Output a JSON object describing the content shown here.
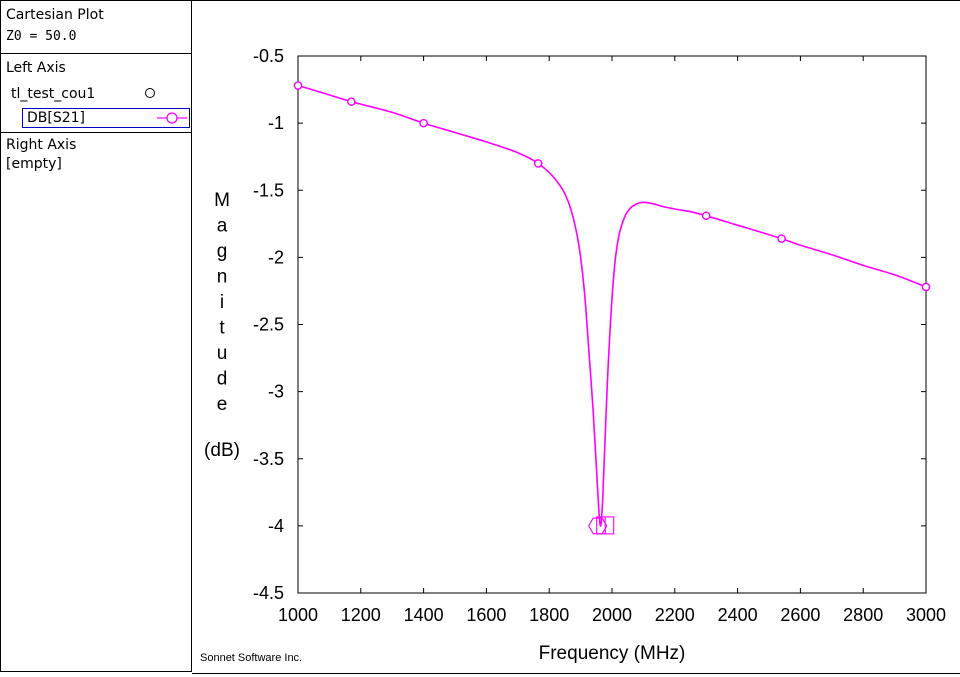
{
  "sidebar": {
    "plot_type": "Cartesian Plot",
    "z0": "Z0 = 50.0",
    "left_axis": {
      "label": "Left Axis",
      "file": "tl_test_cou1",
      "trace": "DB[S21]"
    },
    "right_axis": {
      "label": "Right Axis",
      "value": "[empty]"
    }
  },
  "credit": "Sonnet Software Inc.",
  "trace_color": "#ff00ff",
  "chart_data": {
    "type": "line",
    "xlabel": "Frequency (MHz)",
    "ylabel_letters": [
      "M",
      "a",
      "g",
      "n",
      "i",
      "t",
      "u",
      "d",
      "e"
    ],
    "ylabel_unit": "(dB)",
    "xlim": [
      1000,
      3000
    ],
    "ylim": [
      -4.5,
      -0.5
    ],
    "xticks": [
      "1000",
      "1200",
      "1400",
      "1600",
      "1800",
      "2000",
      "2200",
      "2400",
      "2600",
      "2800",
      "3000"
    ],
    "yticks": [
      "-0.5",
      "-1",
      "-1.5",
      "-2",
      "-2.5",
      "-3",
      "-3.5",
      "-4",
      "-4.5"
    ],
    "series": [
      {
        "name": "DB[S21]",
        "x": [
          1000,
          1100,
          1170,
          1300,
          1400,
          1500,
          1600,
          1700,
          1765,
          1820,
          1860,
          1890,
          1910,
          1925,
          1940,
          1950,
          1958,
          1964,
          1970,
          1978,
          1990,
          2005,
          2020,
          2040,
          2060,
          2080,
          2100,
          2130,
          2160,
          2200,
          2250,
          2300,
          2400,
          2540,
          2600,
          2700,
          2800,
          2900,
          3000
        ],
        "y": [
          -0.72,
          -0.79,
          -0.84,
          -0.92,
          -1.0,
          -1.07,
          -1.14,
          -1.22,
          -1.3,
          -1.42,
          -1.58,
          -1.85,
          -2.2,
          -2.65,
          -3.15,
          -3.55,
          -3.88,
          -4.0,
          -3.82,
          -3.35,
          -2.7,
          -2.15,
          -1.86,
          -1.7,
          -1.63,
          -1.6,
          -1.59,
          -1.6,
          -1.62,
          -1.64,
          -1.66,
          -1.69,
          -1.76,
          -1.86,
          -1.91,
          -1.98,
          -2.06,
          -2.13,
          -2.22
        ],
        "markers_x": [
          1000,
          1170,
          1400,
          1765,
          2300,
          2540,
          3000
        ],
        "markers_y": [
          -0.72,
          -0.84,
          -1.0,
          -1.3,
          -1.69,
          -1.86,
          -2.22
        ]
      }
    ],
    "min_marker": {
      "x": 1964,
      "y": -4.0
    }
  }
}
